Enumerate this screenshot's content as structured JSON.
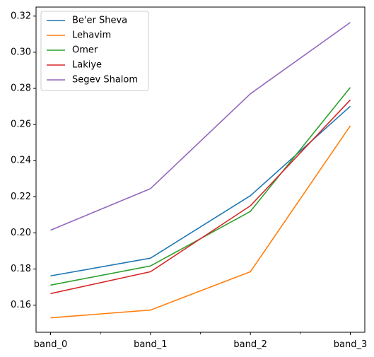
{
  "chart_data": {
    "type": "line",
    "title": "",
    "xlabel": "",
    "ylabel": "",
    "categories": [
      "band_0",
      "band_1",
      "band_2",
      "band_3"
    ],
    "ylim": [
      0.145,
      0.325
    ],
    "yticks": [
      "0.16",
      "0.18",
      "0.20",
      "0.22",
      "0.24",
      "0.26",
      "0.28",
      "0.30",
      "0.32"
    ],
    "grid": false,
    "legend_position": "top-left",
    "series": [
      {
        "name": "Be'er Sheva",
        "color": "#1f77b4",
        "values": [
          0.1762,
          0.186,
          0.2206,
          0.2701
        ]
      },
      {
        "name": "Lehavim",
        "color": "#ff7f0e",
        "values": [
          0.153,
          0.1573,
          0.1785,
          0.2593
        ]
      },
      {
        "name": "Omer",
        "color": "#2ca02c",
        "values": [
          0.1711,
          0.1817,
          0.2119,
          0.2805
        ]
      },
      {
        "name": "Lakiye",
        "color": "#d62728",
        "values": [
          0.1664,
          0.1785,
          0.215,
          0.2736
        ]
      },
      {
        "name": "Segev Shalom",
        "color": "#9467bd",
        "values": [
          0.2015,
          0.2245,
          0.277,
          0.3165
        ]
      }
    ]
  }
}
